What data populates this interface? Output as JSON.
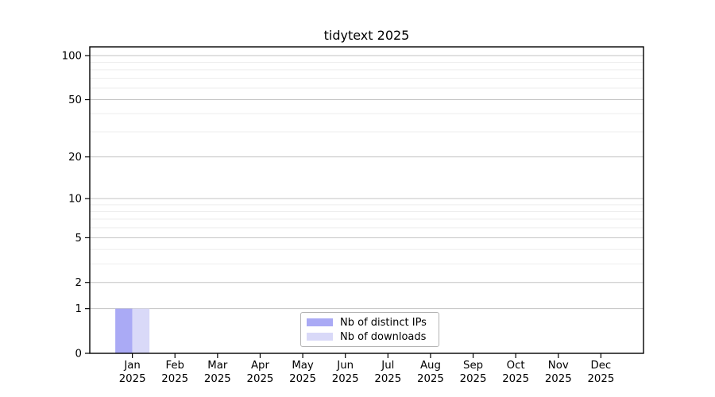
{
  "chart_data": {
    "type": "bar",
    "title": "tidytext 2025",
    "categories": [
      {
        "month": "Jan",
        "year": "2025"
      },
      {
        "month": "Feb",
        "year": "2025"
      },
      {
        "month": "Mar",
        "year": "2025"
      },
      {
        "month": "Apr",
        "year": "2025"
      },
      {
        "month": "May",
        "year": "2025"
      },
      {
        "month": "Jun",
        "year": "2025"
      },
      {
        "month": "Jul",
        "year": "2025"
      },
      {
        "month": "Aug",
        "year": "2025"
      },
      {
        "month": "Sep",
        "year": "2025"
      },
      {
        "month": "Oct",
        "year": "2025"
      },
      {
        "month": "Nov",
        "year": "2025"
      },
      {
        "month": "Dec",
        "year": "2025"
      }
    ],
    "series": [
      {
        "name": "Nb of distinct IPs",
        "color": "#aaaaf5",
        "values": [
          1,
          0,
          0,
          0,
          0,
          0,
          0,
          0,
          0,
          0,
          0,
          0
        ]
      },
      {
        "name": "Nb of downloads",
        "color": "#d9d9f8",
        "values": [
          1,
          0,
          0,
          0,
          0,
          0,
          0,
          0,
          0,
          0,
          0,
          0
        ]
      }
    ],
    "y_scale": "log1p",
    "y_major_ticks": [
      0,
      1,
      2,
      5,
      10,
      20,
      50,
      100
    ],
    "y_minor_ticks": [
      3,
      4,
      6,
      7,
      8,
      9,
      30,
      40,
      60,
      70,
      80,
      90
    ],
    "ylim": [
      0,
      115
    ],
    "xlabel": "",
    "ylabel": "",
    "grid": "horizontal",
    "legend_position": "lower center"
  },
  "style": {
    "major_grid_color": "#c3c3c3",
    "minor_grid_color": "#ededed",
    "spine_color": "#000000",
    "tick_label_color": "#000000"
  }
}
